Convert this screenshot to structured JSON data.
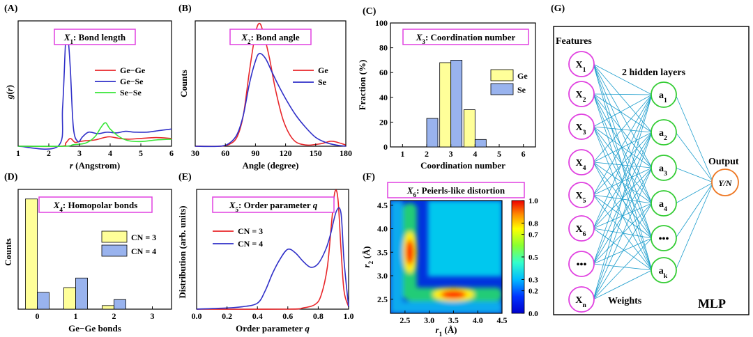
{
  "panels": {
    "A": {
      "letter": "(A)",
      "title": {
        "var": "X",
        "sub": "1",
        "text": ": Bond length"
      }
    },
    "B": {
      "letter": "(B)",
      "title": {
        "var": "X",
        "sub": "2",
        "text": ": Bond angle"
      }
    },
    "C": {
      "letter": "(C)",
      "title": {
        "var": "X",
        "sub": "3",
        "text": ": Coordination number"
      }
    },
    "D": {
      "letter": "(D)",
      "title": {
        "var": "X",
        "sub": "4",
        "text": ": Homopolar bonds"
      }
    },
    "E": {
      "letter": "(E)",
      "title": {
        "var": "X",
        "sub": "5",
        "text": ": Order parameter ",
        "tail": "q"
      }
    },
    "F": {
      "letter": "(F)",
      "title": {
        "var": "X",
        "sub": "6",
        "text": ": Peierls-like distortion"
      }
    },
    "G": {
      "letter": "(G)"
    }
  },
  "colors": {
    "red": "#e8262a",
    "blue": "#2f2fc8",
    "green": "#36e636",
    "yellow": "#ffff99",
    "lightblue": "#99b3ee",
    "magenta": "#e040e0",
    "nodegreen": "#33cc33",
    "orange": "#ee7722",
    "cyan": "#1a9ccc"
  },
  "chart_data": [
    {
      "id": "A",
      "type": "line",
      "xlabel": {
        "italic": "r",
        "text": " (Angstrom)"
      },
      "ylabel": {
        "italic": "g",
        "text": "(",
        "italic2": "r",
        "close": ")"
      },
      "xlim": [
        1,
        6
      ],
      "ylim": [
        0,
        8
      ],
      "xticks": [
        1,
        2,
        3,
        4,
        5,
        6
      ],
      "series": [
        {
          "name": "Ge−Ge",
          "color": "#e8262a",
          "x": [
            1,
            2.4,
            2.55,
            2.7,
            2.85,
            3.0,
            3.2,
            3.5,
            3.8,
            4.0,
            4.3,
            4.6,
            5.0,
            5.5,
            6.0
          ],
          "y": [
            0,
            0,
            0.2,
            0.5,
            0.25,
            0.3,
            0.35,
            0.4,
            0.55,
            0.6,
            0.5,
            0.45,
            0.5,
            0.55,
            0.5
          ]
        },
        {
          "name": "Ge−Se",
          "color": "#2f2fc8",
          "x": [
            1,
            2.3,
            2.45,
            2.55,
            2.62,
            2.7,
            2.8,
            2.95,
            3.1,
            3.3,
            3.6,
            3.9,
            4.2,
            4.5,
            4.8,
            5.2,
            5.6,
            6.0
          ],
          "y": [
            0,
            0,
            2.5,
            6.8,
            7.0,
            5.0,
            1.2,
            0.3,
            0.6,
            0.9,
            0.8,
            0.9,
            0.85,
            0.95,
            0.9,
            0.9,
            1.0,
            1.1
          ]
        },
        {
          "name": "Se−Se",
          "color": "#36e636",
          "x": [
            1,
            2.5,
            2.8,
            3.2,
            3.5,
            3.7,
            3.85,
            4.0,
            4.3,
            4.6,
            5.0,
            5.5,
            6.0
          ],
          "y": [
            0,
            0,
            0.1,
            0.2,
            0.6,
            1.2,
            1.5,
            1.1,
            0.6,
            0.35,
            0.3,
            0.4,
            0.45
          ]
        }
      ]
    },
    {
      "id": "B",
      "type": "line",
      "xlabel": "Angle (degree)",
      "ylabel": "Counts",
      "xlim": [
        30,
        180
      ],
      "ylim": [
        0,
        1
      ],
      "xticks": [
        30,
        60,
        90,
        120,
        150,
        180
      ],
      "series": [
        {
          "name": "Ge",
          "color": "#e8262a",
          "x": [
            30,
            55,
            65,
            72,
            78,
            84,
            90,
            94,
            98,
            104,
            110,
            118,
            128,
            140,
            155,
            165,
            172,
            180
          ],
          "y": [
            0,
            0,
            0.02,
            0.08,
            0.25,
            0.6,
            0.9,
            0.98,
            0.9,
            0.7,
            0.45,
            0.2,
            0.05,
            0.01,
            0.02,
            0.04,
            0.03,
            0.01
          ]
        },
        {
          "name": "Se",
          "color": "#2f2fc8",
          "x": [
            30,
            55,
            65,
            72,
            78,
            84,
            90,
            94,
            100,
            106,
            112,
            120,
            130,
            140,
            150,
            160,
            170,
            180
          ],
          "y": [
            0,
            0,
            0.03,
            0.1,
            0.25,
            0.5,
            0.68,
            0.74,
            0.7,
            0.6,
            0.5,
            0.38,
            0.25,
            0.15,
            0.07,
            0.03,
            0.01,
            0.0
          ]
        }
      ]
    },
    {
      "id": "C",
      "type": "bar",
      "xlabel": "Coordination number",
      "ylabel": "Fraction (%)",
      "categories": [
        1,
        2,
        3,
        4,
        5,
        6
      ],
      "xlim": [
        0.5,
        6.5
      ],
      "ylim": [
        0,
        100
      ],
      "yticks": [
        0,
        20,
        40,
        60,
        80,
        100
      ],
      "series": [
        {
          "name": "Ge",
          "color": "#ffff99",
          "values": [
            0,
            0,
            68,
            30,
            0,
            0
          ]
        },
        {
          "name": "Se",
          "color": "#99b3ee",
          "values": [
            0,
            23,
            70,
            6,
            0,
            0
          ]
        }
      ]
    },
    {
      "id": "D",
      "type": "bar",
      "xlabel": "Ge−Ge bonds",
      "ylabel": "Counts",
      "categories": [
        0,
        1,
        2,
        3
      ],
      "xlim": [
        -0.5,
        3.5
      ],
      "ylim": [
        0,
        1
      ],
      "series": [
        {
          "name": "CN = 3",
          "color": "#ffff99",
          "values": [
            0.92,
            0.18,
            0.03,
            0
          ]
        },
        {
          "name": "CN = 4",
          "color": "#99b3ee",
          "values": [
            0.14,
            0.26,
            0.08,
            0
          ]
        }
      ]
    },
    {
      "id": "E",
      "type": "line",
      "xlabel": {
        "text": "Order parameter ",
        "italic": "q"
      },
      "ylabel": "Distribution (arb. units)",
      "xlim": [
        0,
        1
      ],
      "ylim": [
        0,
        1
      ],
      "xticks": [
        0.0,
        0.2,
        0.4,
        0.6,
        0.8,
        1.0
      ],
      "series": [
        {
          "name": "CN = 3",
          "color": "#e8262a",
          "x": [
            0,
            0.6,
            0.7,
            0.78,
            0.82,
            0.86,
            0.89,
            0.91,
            0.93,
            0.95,
            0.97,
            1.0
          ],
          "y": [
            0,
            0,
            0.01,
            0.04,
            0.12,
            0.35,
            0.75,
            0.98,
            0.92,
            0.5,
            0.15,
            0.02
          ]
        },
        {
          "name": "CN = 4",
          "color": "#2f2fc8",
          "x": [
            0,
            0.2,
            0.3,
            0.4,
            0.45,
            0.5,
            0.55,
            0.6,
            0.65,
            0.7,
            0.75,
            0.8,
            0.85,
            0.88,
            0.92,
            0.95,
            0.97,
            1.0
          ],
          "y": [
            0,
            0.01,
            0.02,
            0.05,
            0.15,
            0.3,
            0.42,
            0.5,
            0.47,
            0.4,
            0.35,
            0.38,
            0.5,
            0.62,
            0.82,
            0.8,
            0.4,
            0.02
          ]
        }
      ]
    },
    {
      "id": "F",
      "type": "heatmap",
      "xlabel": {
        "italic": "r",
        "sub": "1",
        "text": " (Å)"
      },
      "ylabel": {
        "italic": "r",
        "sub": "2",
        "text": " (Å)"
      },
      "xlim": [
        2.2,
        4.5
      ],
      "ylim": [
        2.2,
        4.6
      ],
      "xticks": [
        2.5,
        3.0,
        3.5,
        4.0,
        4.5
      ],
      "yticks": [
        2.5,
        3.0,
        3.5,
        4.0,
        4.5
      ],
      "colorbar": {
        "min": 0,
        "max": 1,
        "ticks": [
          0.0,
          0.2,
          0.3,
          0.5,
          0.7,
          0.8,
          1.0
        ]
      },
      "peaks": [
        {
          "x": 3.5,
          "y": 2.6,
          "value": 1.0
        },
        {
          "x": 2.6,
          "y": 3.5,
          "value": 1.0
        }
      ]
    }
  ],
  "mlp": {
    "features_label": "Features",
    "hidden_label": "2 hidden layers",
    "output_label": "Output",
    "weights_label": "Weights",
    "name": "MLP",
    "inputs": [
      {
        "base": "X",
        "sub": "1"
      },
      {
        "base": "X",
        "sub": "2"
      },
      {
        "base": "X",
        "sub": "3"
      },
      {
        "base": "X",
        "sub": "4"
      },
      {
        "base": "X",
        "sub": "5"
      },
      {
        "base": "X",
        "sub": "6"
      },
      {
        "base": "•••",
        "sub": ""
      },
      {
        "base": "X",
        "sub": "n"
      }
    ],
    "hidden": [
      {
        "base": "a",
        "sub": "1"
      },
      {
        "base": "a",
        "sub": "2"
      },
      {
        "base": "a",
        "sub": "3"
      },
      {
        "base": "a",
        "sub": "4"
      },
      {
        "base": "•••",
        "sub": ""
      },
      {
        "base": "a",
        "sub": "k"
      }
    ],
    "output": "Y/N"
  }
}
